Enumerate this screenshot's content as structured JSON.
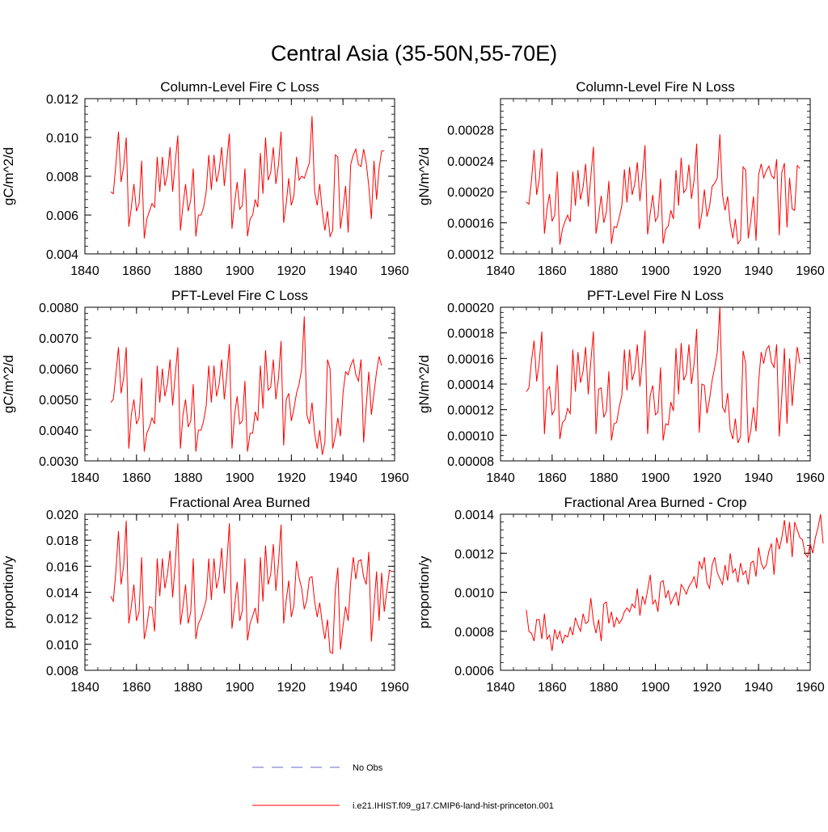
{
  "page": {
    "title": "Central Asia (35-50N,55-70E)"
  },
  "legend": {
    "obs_label": "No Obs",
    "obs_color": "#6a6ac8",
    "model_label": "i.e21.IHIST.f09_g17.CMIP6-land-hist-princeton.001",
    "model_color": "#ff0000"
  },
  "chart_data": [
    {
      "type": "line",
      "title": "Column-Level Fire C Loss",
      "ylabel": "gC/m^2/d",
      "xlabel": "",
      "xlim": [
        1840,
        1960
      ],
      "ylim": [
        0.004,
        0.012
      ],
      "xticks": [
        1840,
        1860,
        1880,
        1900,
        1920,
        1940,
        1960
      ],
      "xtick_labels": [
        "1840",
        "1860",
        "1880",
        "1900",
        "1920",
        "1940",
        "1960"
      ],
      "yticks": [
        0.004,
        0.006,
        0.008,
        0.01,
        0.012
      ],
      "ytick_labels": [
        "0.004",
        "0.006",
        "0.008",
        "0.010",
        "0.012"
      ],
      "x_start": 1850,
      "series": [
        {
          "color": "#ff0000",
          "values": [
            0.0072,
            0.0071,
            0.0086,
            0.0103,
            0.0077,
            0.0085,
            0.01,
            0.0054,
            0.0064,
            0.0076,
            0.0062,
            0.0066,
            0.0088,
            0.0048,
            0.0058,
            0.0062,
            0.0066,
            0.0064,
            0.009,
            0.0072,
            0.009,
            0.0075,
            0.0081,
            0.0095,
            0.0072,
            0.0087,
            0.0101,
            0.0052,
            0.0065,
            0.0076,
            0.0062,
            0.0068,
            0.0084,
            0.0049,
            0.006,
            0.006,
            0.0064,
            0.0072,
            0.0091,
            0.0073,
            0.0091,
            0.0077,
            0.0083,
            0.0095,
            0.0075,
            0.0088,
            0.0102,
            0.0053,
            0.0066,
            0.0077,
            0.0063,
            0.0065,
            0.0084,
            0.0049,
            0.0058,
            0.006,
            0.0068,
            0.0064,
            0.0092,
            0.0071,
            0.01,
            0.0078,
            0.0082,
            0.0095,
            0.0076,
            0.0086,
            0.0103,
            0.0056,
            0.0066,
            0.0079,
            0.0065,
            0.007,
            0.009,
            0.0078,
            0.008,
            0.0079,
            0.0083,
            0.0087,
            0.0111,
            0.0072,
            0.0065,
            0.0076,
            0.0062,
            0.0052,
            0.0062,
            0.0049,
            0.0052,
            0.0091,
            0.009,
            0.0053,
            0.0063,
            0.0075,
            0.0051,
            0.0086,
            0.0091,
            0.0094,
            0.0086,
            0.0085,
            0.0094,
            0.0087,
            0.0075,
            0.0058,
            0.0088,
            0.0068,
            0.0084,
            0.0093,
            0.0093
          ]
        }
      ]
    },
    {
      "type": "line",
      "title": "Column-Level Fire N Loss",
      "ylabel": "gN/m^2/d",
      "xlabel": "",
      "xlim": [
        1840,
        1960
      ],
      "ylim": [
        0.00012,
        0.00032
      ],
      "xticks": [
        1840,
        1860,
        1880,
        1900,
        1920,
        1940,
        1960
      ],
      "xtick_labels": [
        "1840",
        "1860",
        "1880",
        "1900",
        "1920",
        "1940",
        "1960"
      ],
      "yticks": [
        0.00012,
        0.00016,
        0.0002,
        0.00024,
        0.00028
      ],
      "ytick_labels": [
        "0.00012",
        "0.00016",
        "0.00020",
        "0.00024",
        "0.00028"
      ],
      "x_start": 1850,
      "series": [
        {
          "color": "#ff0000",
          "values": [
            0.000187,
            0.000184,
            0.000215,
            0.000254,
            0.000196,
            0.000216,
            0.000256,
            0.000146,
            0.000178,
            0.000197,
            0.000162,
            0.00017,
            0.000226,
            0.000132,
            0.000152,
            0.000162,
            0.00017,
            0.000161,
            0.000226,
            0.000182,
            0.000228,
            0.00019,
            0.000206,
            0.000236,
            0.000181,
            0.00022,
            0.000258,
            0.000146,
            0.000168,
            0.000195,
            0.00016,
            0.000174,
            0.000214,
            0.000133,
            0.000155,
            0.000154,
            0.000167,
            0.000182,
            0.000229,
            0.000186,
            0.000232,
            0.000196,
            0.00021,
            0.000238,
            0.000188,
            0.00022,
            0.00026,
            0.000145,
            0.000172,
            0.000196,
            0.000162,
            0.000168,
            0.000217,
            0.000133,
            0.000152,
            0.000156,
            0.000176,
            0.000165,
            0.000228,
            0.000182,
            0.000244,
            0.000199,
            0.000204,
            0.000235,
            0.000191,
            0.000215,
            0.000262,
            0.000152,
            0.000172,
            0.000203,
            0.000168,
            0.000181,
            0.000207,
            0.000211,
            0.000218,
            0.000274,
            0.000196,
            0.000176,
            0.000194,
            0.000159,
            0.00014,
            0.000165,
            0.000133,
            0.000138,
            0.000232,
            0.000228,
            0.00014,
            0.000164,
            0.000194,
            0.000137,
            0.000222,
            0.000236,
            0.000218,
            0.000227,
            0.000233,
            0.000221,
            0.000217,
            0.000242,
            0.000144,
            0.000225,
            0.000237,
            0.000154,
            0.000218,
            0.000178,
            0.000176,
            0.000234,
            0.00023
          ]
        }
      ]
    },
    {
      "type": "line",
      "title": "PFT-Level Fire C Loss",
      "ylabel": "gC/m^2/d",
      "xlabel": "",
      "xlim": [
        1840,
        1960
      ],
      "ylim": [
        0.003,
        0.008
      ],
      "xticks": [
        1840,
        1860,
        1880,
        1900,
        1920,
        1940,
        1960
      ],
      "xtick_labels": [
        "1840",
        "1860",
        "1880",
        "1900",
        "1920",
        "1940",
        "1960"
      ],
      "yticks": [
        0.003,
        0.004,
        0.005,
        0.006,
        0.007,
        0.008
      ],
      "ytick_labels": [
        "0.0030",
        "0.0040",
        "0.0050",
        "0.0060",
        "0.0070",
        "0.0080"
      ],
      "x_start": 1850,
      "series": [
        {
          "color": "#ff0000",
          "values": [
            0.0049,
            0.005,
            0.0058,
            0.0067,
            0.0052,
            0.0057,
            0.0067,
            0.0034,
            0.0045,
            0.005,
            0.0042,
            0.0044,
            0.0057,
            0.0033,
            0.0039,
            0.0041,
            0.0044,
            0.0042,
            0.0061,
            0.0049,
            0.006,
            0.0051,
            0.0055,
            0.0063,
            0.0048,
            0.0058,
            0.0067,
            0.0034,
            0.0045,
            0.005,
            0.0041,
            0.0043,
            0.0055,
            0.0033,
            0.004,
            0.004,
            0.0043,
            0.0048,
            0.0061,
            0.0049,
            0.0061,
            0.0051,
            0.0055,
            0.0063,
            0.005,
            0.0058,
            0.0068,
            0.0034,
            0.0045,
            0.0051,
            0.0042,
            0.0043,
            0.0056,
            0.0033,
            0.0039,
            0.0039,
            0.0046,
            0.0043,
            0.0061,
            0.0047,
            0.0066,
            0.0053,
            0.0054,
            0.0063,
            0.005,
            0.0057,
            0.0069,
            0.0035,
            0.005,
            0.0052,
            0.0043,
            0.0047,
            0.0052,
            0.0055,
            0.006,
            0.0077,
            0.0045,
            0.0042,
            0.0049,
            0.0039,
            0.0034,
            0.004,
            0.0032,
            0.0036,
            0.0063,
            0.006,
            0.0034,
            0.0038,
            0.0044,
            0.0038,
            0.0052,
            0.0059,
            0.0058,
            0.0061,
            0.0063,
            0.0058,
            0.0056,
            0.0063,
            0.0036,
            0.0048,
            0.0059,
            0.0045,
            0.0052,
            0.0059,
            0.0064,
            0.0061
          ]
        }
      ]
    },
    {
      "type": "line",
      "title": "PFT-Level Fire N Loss",
      "ylabel": "gN/m^2/d",
      "xlabel": "",
      "xlim": [
        1840,
        1960
      ],
      "ylim": [
        8e-05,
        0.0002
      ],
      "xticks": [
        1840,
        1860,
        1880,
        1900,
        1920,
        1940,
        1960
      ],
      "xtick_labels": [
        "1840",
        "1860",
        "1880",
        "1900",
        "1920",
        "1940",
        "1960"
      ],
      "yticks": [
        8e-05,
        0.0001,
        0.00012,
        0.00014,
        0.00016,
        0.00018,
        0.0002
      ],
      "ytick_labels": [
        "0.00008",
        "0.00010",
        "0.00012",
        "0.00014",
        "0.00016",
        "0.00018",
        "0.00020"
      ],
      "x_start": 1850,
      "series": [
        {
          "color": "#ff0000",
          "values": [
            0.000134,
            0.000137,
            0.000158,
            0.000174,
            0.000142,
            0.000157,
            0.000181,
            0.000101,
            0.000135,
            0.000138,
            0.000116,
            0.00012,
            0.000155,
            9.7e-05,
            0.00011,
            0.000112,
            0.000121,
            0.000117,
            0.000167,
            0.000134,
            0.000165,
            0.000141,
            0.00015,
            0.000169,
            0.000132,
            0.000158,
            0.000181,
            0.000101,
            0.000136,
            0.000137,
            0.000114,
            0.000119,
            0.00015,
            9.6e-05,
            0.000109,
            0.00011,
            0.000122,
            0.000131,
            0.000167,
            0.000135,
            0.000167,
            0.000143,
            0.00015,
            0.000171,
            0.000138,
            0.000158,
            0.000182,
            0.000101,
            0.000131,
            0.000139,
            0.000116,
            0.000118,
            0.000153,
            9.6e-05,
            0.000109,
            0.000108,
            0.000126,
            0.000119,
            0.000168,
            0.000132,
            0.000172,
            0.000143,
            0.000148,
            0.000171,
            0.00014,
            0.000156,
            0.000183,
            0.000102,
            0.00014,
            0.000139,
            0.000117,
            0.000128,
            0.000143,
            0.000153,
            0.000165,
            0.0002,
            0.000122,
            0.000118,
            0.000133,
            0.000104,
            9.7e-05,
            0.000113,
            9.4e-05,
            9.9e-05,
            0.000166,
            0.000156,
            9.4e-05,
            0.000104,
            0.000122,
            0.000103,
            0.000142,
            0.000165,
            0.000156,
            0.000167,
            0.00017,
            0.000157,
            0.000153,
            0.000171,
            9.9e-05,
            0.000131,
            0.000168,
            0.000109,
            0.00016,
            0.000123,
            0.000148,
            0.000169,
            0.000156
          ]
        }
      ]
    },
    {
      "type": "line",
      "title": "Fractional Area Burned",
      "ylabel": "proportion/y",
      "xlabel": "",
      "xlim": [
        1840,
        1960
      ],
      "ylim": [
        0.008,
        0.02
      ],
      "xticks": [
        1840,
        1860,
        1880,
        1900,
        1920,
        1940,
        1960
      ],
      "xtick_labels": [
        "1840",
        "1860",
        "1880",
        "1900",
        "1920",
        "1940",
        "1960"
      ],
      "yticks": [
        0.008,
        0.01,
        0.012,
        0.014,
        0.016,
        0.018,
        0.02
      ],
      "ytick_labels": [
        "0.008",
        "0.010",
        "0.012",
        "0.014",
        "0.016",
        "0.018",
        "0.020"
      ],
      "x_start": 1850,
      "series": [
        {
          "color": "#ff0000",
          "values": [
            0.0137,
            0.0133,
            0.0156,
            0.0187,
            0.0146,
            0.016,
            0.0195,
            0.0116,
            0.0129,
            0.0146,
            0.0118,
            0.0125,
            0.0167,
            0.0104,
            0.0114,
            0.0129,
            0.0128,
            0.011,
            0.0166,
            0.0137,
            0.0166,
            0.0143,
            0.0154,
            0.0172,
            0.0136,
            0.0162,
            0.0193,
            0.0115,
            0.0129,
            0.0146,
            0.0116,
            0.0125,
            0.0166,
            0.0104,
            0.0116,
            0.012,
            0.0127,
            0.0134,
            0.0166,
            0.0134,
            0.0166,
            0.0143,
            0.0152,
            0.0174,
            0.0139,
            0.0162,
            0.0193,
            0.0112,
            0.0129,
            0.0148,
            0.0118,
            0.0126,
            0.0166,
            0.0103,
            0.0116,
            0.0122,
            0.0128,
            0.0116,
            0.0167,
            0.0133,
            0.0176,
            0.0146,
            0.0154,
            0.0177,
            0.0141,
            0.0163,
            0.0192,
            0.0116,
            0.0134,
            0.0149,
            0.0121,
            0.013,
            0.0164,
            0.0151,
            0.0143,
            0.0127,
            0.0134,
            0.0151,
            0.0152,
            0.0133,
            0.0121,
            0.0132,
            0.0116,
            0.0104,
            0.0119,
            0.0094,
            0.0093,
            0.0141,
            0.0159,
            0.0096,
            0.0114,
            0.0129,
            0.0118,
            0.0148,
            0.0167,
            0.015,
            0.0164,
            0.0165,
            0.0152,
            0.0146,
            0.0171,
            0.0102,
            0.0129,
            0.0156,
            0.0118,
            0.0155,
            0.0125,
            0.0141,
            0.0157,
            0.0156
          ]
        }
      ]
    },
    {
      "type": "line",
      "title": "Fractional Area Burned - Crop",
      "ylabel": "proportion/y",
      "xlabel": "",
      "xlim": [
        1840,
        1960
      ],
      "ylim": [
        0.0006,
        0.0014
      ],
      "xticks": [
        1840,
        1860,
        1880,
        1900,
        1920,
        1940,
        1960
      ],
      "xtick_labels": [
        "1840",
        "1860",
        "1880",
        "1900",
        "1920",
        "1940",
        "1960"
      ],
      "yticks": [
        0.0006,
        0.0008,
        0.001,
        0.0012,
        0.0014
      ],
      "ytick_labels": [
        "0.0006",
        "0.0008",
        "0.0010",
        "0.0012",
        "0.0014"
      ],
      "x_start": 1850,
      "series": [
        {
          "color": "#ff0000",
          "values": [
            0.00091,
            0.0008,
            0.00079,
            0.00075,
            0.00086,
            0.00086,
            0.00076,
            0.00089,
            0.00076,
            0.00078,
            0.0007,
            0.00081,
            0.00076,
            0.0008,
            0.00074,
            0.00078,
            0.00077,
            0.00082,
            0.00078,
            0.00087,
            0.00083,
            0.0008,
            0.00089,
            0.00084,
            0.00085,
            0.00097,
            0.00085,
            0.00079,
            0.00086,
            0.00075,
            0.00094,
            0.00095,
            0.00084,
            0.0009,
            0.00082,
            0.00087,
            0.00084,
            0.00086,
            0.0009,
            0.00092,
            0.0009,
            0.00094,
            0.00092,
            0.00102,
            0.00088,
            0.00098,
            0.00094,
            0.00101,
            0.00109,
            0.00094,
            0.00096,
            0.0009,
            0.00105,
            0.00106,
            0.00097,
            0.00101,
            0.00094,
            0.00097,
            0.001,
            0.00093,
            0.00104,
            0.00102,
            0.00099,
            0.00103,
            0.00105,
            0.00108,
            0.00102,
            0.00116,
            0.00112,
            0.00118,
            0.00105,
            0.00102,
            0.00114,
            0.00118,
            0.0011,
            0.00107,
            0.00104,
            0.00114,
            0.00106,
            0.0012,
            0.0011,
            0.00112,
            0.00105,
            0.00115,
            0.00109,
            0.00111,
            0.00104,
            0.00115,
            0.00116,
            0.00108,
            0.00123,
            0.00115,
            0.00112,
            0.00114,
            0.00121,
            0.00125,
            0.00109,
            0.00128,
            0.00122,
            0.00128,
            0.00137,
            0.00125,
            0.00136,
            0.00118,
            0.00136,
            0.00132,
            0.00128,
            0.00127,
            0.0012,
            0.00118,
            0.00125,
            0.0012,
            0.00128,
            0.00133,
            0.0014,
            0.00125
          ]
        }
      ]
    }
  ]
}
